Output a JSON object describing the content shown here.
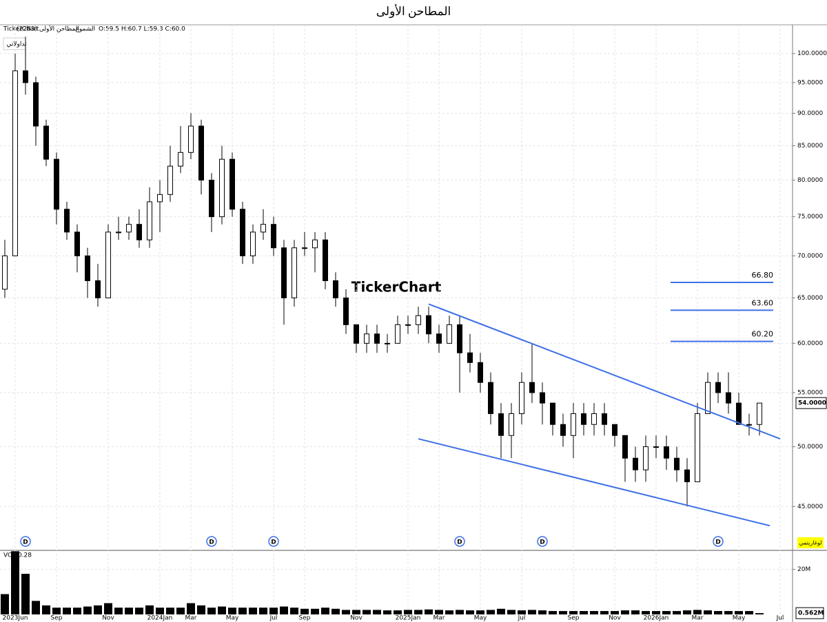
{
  "title": "المطاحن الأولى",
  "header": {
    "provider": "TickerChart",
    "symbol": "المطاحن الأولى (2283)",
    "style": "الشموع",
    "ohlc": "O:59.5 H:60.7 L:59.3 C:60.0"
  },
  "watermark": "TickerChart",
  "button": "تداولاتي",
  "scale_label": "لوغاريتمي",
  "volume_label": "VOL 0.28",
  "chart_data": [
    {
      "type": "candlestick",
      "log": true,
      "grid": true,
      "categories": [
        null,
        "2023Jun",
        null,
        null,
        null,
        "Sep",
        null,
        null,
        null,
        null,
        "Nov",
        null,
        null,
        null,
        null,
        "2024Jan",
        null,
        null,
        "Mar",
        null,
        null,
        null,
        "May",
        null,
        null,
        null,
        "Jul",
        null,
        null,
        "Sep",
        null,
        null,
        null,
        null,
        "Nov",
        null,
        null,
        null,
        null,
        "2025Jan",
        null,
        null,
        "Mar",
        null,
        null,
        null,
        "May",
        null,
        null,
        null,
        "Jul",
        null,
        null,
        null,
        null,
        "Sep",
        null,
        null,
        null,
        "Nov",
        null,
        null,
        null,
        "2026Jan",
        null,
        null,
        null,
        "Mar",
        null,
        null,
        null,
        "May",
        null,
        null,
        null,
        "Jul"
      ],
      "open": [
        66,
        70,
        97,
        95,
        88,
        83,
        76,
        73,
        70,
        67,
        65,
        73,
        73,
        74,
        72,
        77,
        78,
        82,
        84,
        88,
        80,
        75,
        83,
        76,
        70,
        73,
        74,
        71,
        65,
        71,
        71,
        72,
        67,
        65,
        62,
        60,
        61,
        60,
        60,
        62,
        62,
        63,
        61,
        60,
        62,
        59,
        58,
        56,
        53,
        51,
        53,
        56,
        55,
        54,
        52,
        51,
        53,
        52,
        53,
        52,
        51,
        49,
        48,
        50,
        50,
        49,
        48,
        47,
        53,
        56,
        55,
        54,
        52,
        52,
        null,
        null
      ],
      "high": [
        72,
        100,
        103,
        96,
        89,
        84,
        77,
        74,
        71,
        69,
        74,
        75,
        75,
        76,
        79,
        80,
        85,
        88,
        90,
        89,
        81,
        85,
        84,
        77,
        74,
        76,
        75,
        72,
        72,
        73,
        73,
        73,
        68,
        66,
        62,
        62,
        62,
        61,
        63,
        63,
        64,
        64,
        62,
        63,
        63,
        61,
        59,
        57,
        54,
        54,
        57,
        60,
        56,
        54,
        53,
        54,
        54,
        54,
        54,
        52,
        51,
        50,
        51,
        51,
        51,
        50,
        49,
        54,
        57,
        57,
        57,
        55,
        53,
        54,
        null,
        null
      ],
      "low": [
        65,
        70,
        93,
        85,
        82,
        74,
        72,
        68,
        65,
        64,
        65,
        72,
        72,
        71,
        71,
        73,
        77,
        81,
        83,
        78,
        73,
        74,
        75,
        69,
        69,
        72,
        70,
        62,
        64,
        70,
        68,
        66,
        64,
        61,
        59,
        59,
        59,
        59,
        60,
        61,
        61,
        60,
        59,
        60,
        55,
        57,
        55,
        52,
        49,
        49,
        52,
        54,
        52,
        51,
        50,
        49,
        51,
        51,
        51,
        50,
        47,
        47,
        47,
        49,
        48,
        47,
        45,
        47,
        53,
        54,
        53,
        52,
        51,
        51,
        null,
        null
      ],
      "close": [
        70,
        97,
        95,
        88,
        83,
        76,
        73,
        70,
        67,
        65,
        73,
        73,
        74,
        72,
        77,
        78,
        82,
        84,
        88,
        80,
        75,
        83,
        76,
        70,
        73,
        74,
        71,
        65,
        71,
        71,
        72,
        67,
        65,
        62,
        60,
        61,
        60,
        60,
        62,
        62,
        63,
        61,
        60,
        62,
        59,
        58,
        56,
        53,
        51,
        53,
        56,
        55,
        54,
        52,
        51,
        53,
        52,
        53,
        52,
        51,
        49,
        48,
        50,
        50,
        49,
        48,
        47,
        53,
        56,
        55,
        54,
        52,
        52,
        54,
        null,
        null
      ],
      "ylim": [
        41.7,
        105.2
      ],
      "yticks": [
        {
          "value": 45,
          "label": "45.0000"
        },
        {
          "value": 50,
          "label": "50.0000"
        },
        {
          "value": 55,
          "label": "55.0000"
        },
        {
          "value": 60,
          "label": "60.0000"
        },
        {
          "value": 65,
          "label": "65.0000"
        },
        {
          "value": 70,
          "label": "70.0000"
        },
        {
          "value": 75,
          "label": "75.0000"
        },
        {
          "value": 80,
          "label": "80.0000"
        },
        {
          "value": 85,
          "label": "85.0000"
        },
        {
          "value": 90,
          "label": "90.0000"
        },
        {
          "value": 95,
          "label": "95.0000"
        },
        {
          "value": 100,
          "label": "100.0000"
        }
      ],
      "trendlines": [
        {
          "points": [
            [
              41,
              64.3
            ],
            [
              75,
              50.7
            ]
          ],
          "color": "#3d6fe8"
        },
        {
          "points": [
            [
              40,
              50.7
            ],
            [
              74,
              43.5
            ]
          ],
          "color": "#3d6fe8"
        }
      ],
      "levels": [
        {
          "value": 66.8,
          "label": "66.80"
        },
        {
          "value": 63.6,
          "label": "63.60"
        },
        {
          "value": 60.2,
          "label": "60.20"
        }
      ],
      "level_color": "#3d6fe8",
      "dividends": {
        "label": "D",
        "at": [
          2,
          20,
          26,
          44,
          52,
          69
        ]
      },
      "last_price": {
        "value": 54,
        "label": "54.0000"
      }
    },
    {
      "type": "bar",
      "color": "#000000",
      "values": [
        9,
        28,
        18,
        6,
        4,
        3,
        3,
        3,
        3.5,
        4,
        5,
        3,
        3,
        3,
        4,
        3,
        3,
        3,
        5,
        4,
        3,
        3.5,
        3,
        3,
        3,
        3,
        3,
        3.5,
        3,
        2.5,
        2.5,
        3,
        2.5,
        2,
        2,
        2,
        2,
        1.8,
        1.8,
        2,
        2,
        2.2,
        2,
        1.8,
        2,
        1.8,
        1.8,
        2,
        2.5,
        2,
        1.8,
        2,
        1.8,
        1.5,
        1.5,
        1.5,
        1.5,
        1.5,
        1.5,
        1.5,
        1.8,
        1.8,
        1.5,
        1.5,
        1.5,
        1.5,
        1.8,
        2,
        1.8,
        1.5,
        1.5,
        1.5,
        1.5,
        0.562,
        null,
        null
      ],
      "ylim": [
        0,
        28.1
      ],
      "yticks": [
        {
          "value": 20,
          "label": "20M"
        }
      ],
      "last_value": {
        "value": 0.562,
        "label": "0.562M"
      }
    }
  ]
}
